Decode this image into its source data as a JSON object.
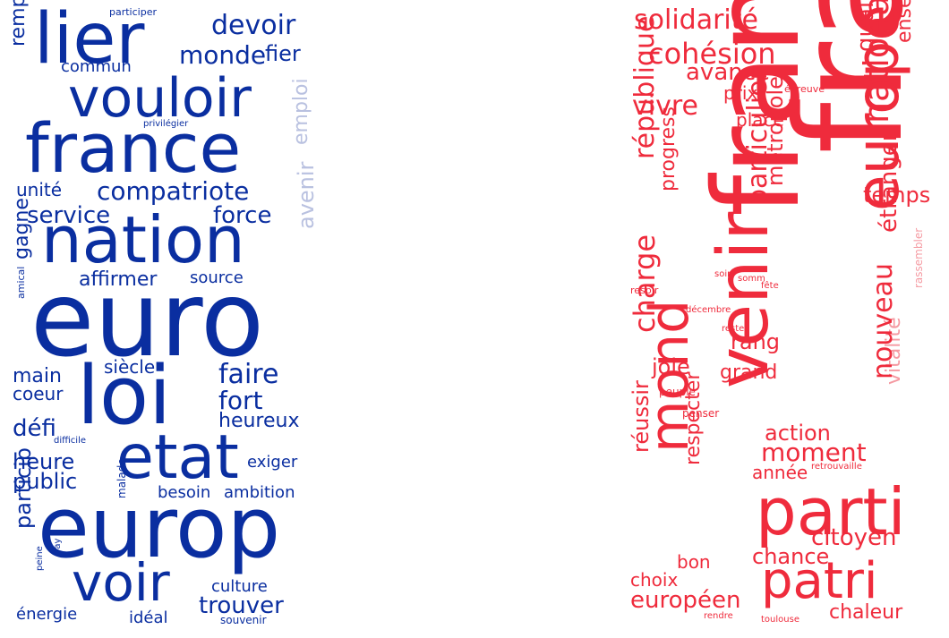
{
  "colors": {
    "blue": "#0a2ea0",
    "blue_faint": "#b9c1e0",
    "red": "#ef2b3c",
    "red_faint": "#f59aa2"
  },
  "left_cloud": {
    "words": [
      "participer",
      "lier",
      "devoir",
      "remplir",
      "fier",
      "monde",
      "commun",
      "vouloir",
      "privilégier",
      "france",
      "emploi",
      "compatriote",
      "unité",
      "service",
      "force",
      "nation",
      "avenir",
      "gagne",
      "affirmer",
      "source",
      "amical",
      "euro",
      "loi",
      "siècle",
      "main",
      "faire",
      "coeur",
      "fort",
      "défi",
      "heureux",
      "difficile",
      "etat",
      "heure",
      "exiger",
      "public",
      "besoin",
      "ambition",
      "malade",
      "europ",
      "particip",
      "pay",
      "peine",
      "voir",
      "culture",
      "énergie",
      "trouver",
      "idéal",
      "souvenir"
    ]
  },
  "right_cloud": {
    "words": [
      "solidarité",
      "cohésion",
      "français",
      "ensembl",
      "avance",
      "qualité",
      "prix",
      "épreuve",
      "vivre",
      "national",
      "place",
      "république",
      "franc",
      "temps",
      "progress",
      "particulier",
      "métropole",
      "europe",
      "étranger",
      "soir",
      "somm",
      "respir",
      "fête",
      "décembre",
      "rang",
      "charge",
      "mond",
      "rester",
      "rassembler",
      "joie",
      "grand",
      "vitalité",
      "nouveau",
      "peuple",
      "venir",
      "penser",
      "action",
      "moment",
      "réussir",
      "respecter",
      "année",
      "retrouvaille",
      "parti",
      "citoyen",
      "chance",
      "bon",
      "choix",
      "patri",
      "européen",
      "chaleur",
      "rendre",
      "toulouse"
    ]
  }
}
